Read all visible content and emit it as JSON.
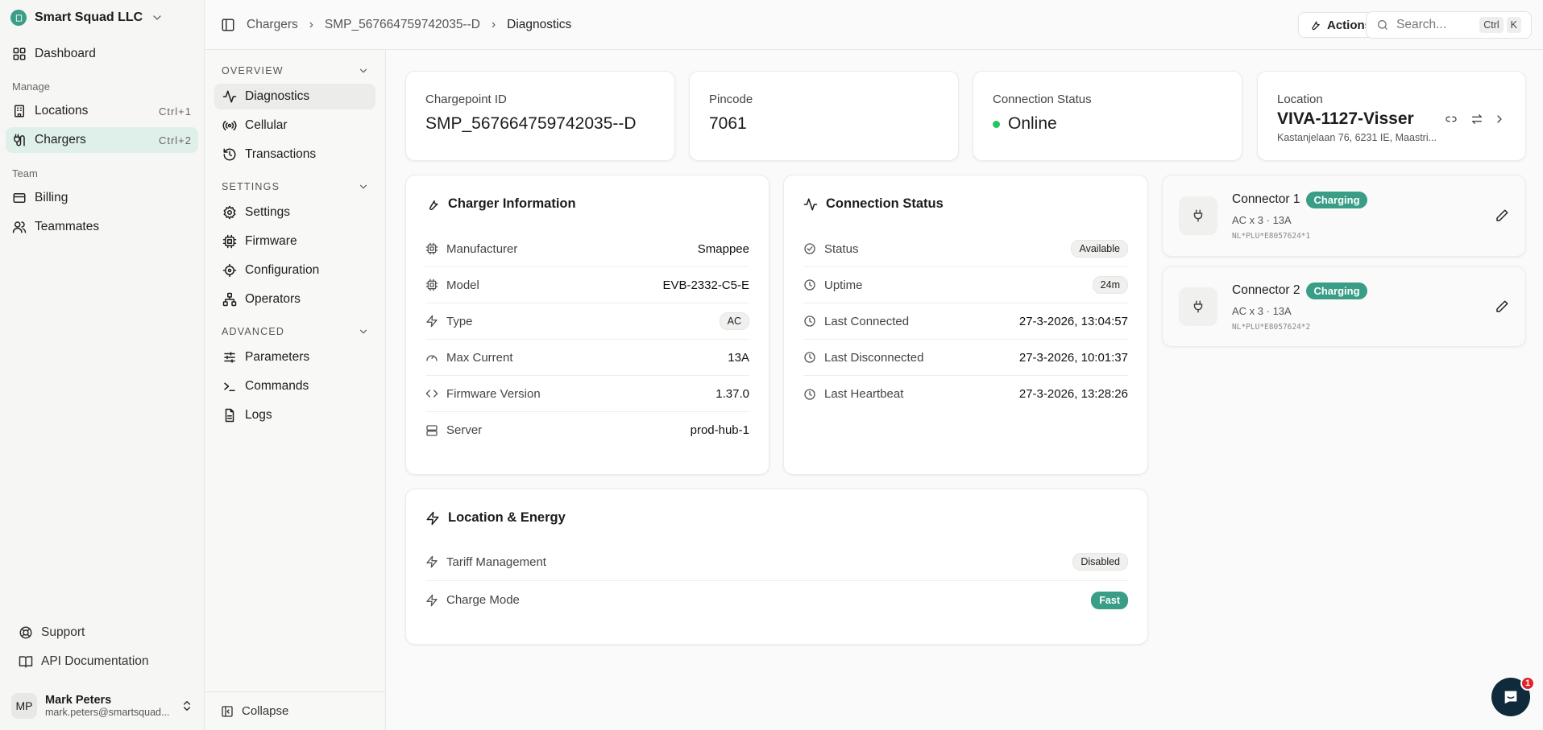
{
  "sidebar": {
    "org": "Smart Squad LLC",
    "dashboard": "Dashboard",
    "group_manage": "Manage",
    "locations": {
      "label": "Locations",
      "shortcut": "Ctrl+1"
    },
    "chargers": {
      "label": "Chargers",
      "shortcut": "Ctrl+2"
    },
    "group_team": "Team",
    "billing": "Billing",
    "teammates": "Teammates",
    "support": "Support",
    "api_docs": "API Documentation",
    "user": {
      "initials": "MP",
      "name": "Mark Peters",
      "email": "mark.peters@smartsquad..."
    }
  },
  "subnav": {
    "overview": "OVERVIEW",
    "overview_items": [
      "Diagnostics",
      "Cellular",
      "Transactions"
    ],
    "settings": "SETTINGS",
    "settings_items": [
      "Settings",
      "Firmware",
      "Configuration",
      "Operators"
    ],
    "advanced": "ADVANCED",
    "advanced_items": [
      "Parameters",
      "Commands",
      "Logs"
    ],
    "collapse": "Collapse"
  },
  "header": {
    "breadcrumb": [
      "Chargers",
      "SMP_567664759742035--D",
      "Diagnostics"
    ],
    "actions": "Actions",
    "search_placeholder": "Search...",
    "kbd": [
      "Ctrl",
      "K"
    ]
  },
  "stats": {
    "chargepoint": {
      "label": "Chargepoint ID",
      "value": "SMP_567664759742035--D"
    },
    "pincode": {
      "label": "Pincode",
      "value": "7061"
    },
    "connection": {
      "label": "Connection Status",
      "value": "Online",
      "color": "#22c55e"
    },
    "location": {
      "label": "Location",
      "value": "VIVA-1127-Visser",
      "address": "Kastanjelaan 76, 6231 IE, Maastri..."
    }
  },
  "charger_info": {
    "title": "Charger Information",
    "rows": [
      {
        "label": "Manufacturer",
        "value": "Smappee"
      },
      {
        "label": "Model",
        "value": "EVB-2332-C5-E"
      },
      {
        "label": "Type",
        "value": "AC"
      },
      {
        "label": "Max Current",
        "value": "13A"
      },
      {
        "label": "Firmware Version",
        "value": "1.37.0"
      },
      {
        "label": "Server",
        "value": "prod-hub-1"
      }
    ]
  },
  "connection_status": {
    "title": "Connection Status",
    "rows": [
      {
        "label": "Status",
        "value": "Available"
      },
      {
        "label": "Uptime",
        "value": "24m"
      },
      {
        "label": "Last Connected",
        "value": "27-3-2026, 13:04:57"
      },
      {
        "label": "Last Disconnected",
        "value": "27-3-2026, 10:01:37"
      },
      {
        "label": "Last Heartbeat",
        "value": "27-3-2026, 13:28:26"
      }
    ]
  },
  "location_energy": {
    "title": "Location & Energy",
    "rows": [
      {
        "label": "Tariff Management",
        "value": "Disabled"
      },
      {
        "label": "Charge Mode",
        "value": "Fast"
      }
    ]
  },
  "connectors": [
    {
      "name": "Connector 1",
      "status": "Charging",
      "spec": "AC x 3  ·  13A",
      "id": "NL*PLU*E8057624*1"
    },
    {
      "name": "Connector 2",
      "status": "Charging",
      "spec": "AC x 3  ·  13A",
      "id": "NL*PLU*E8057624*2"
    }
  ],
  "chat": {
    "unread": "1"
  },
  "colors": {
    "accent": "#3a9e86",
    "online": "#22c55e",
    "chat": "#0f2a3a",
    "badge": "#e0242b"
  }
}
